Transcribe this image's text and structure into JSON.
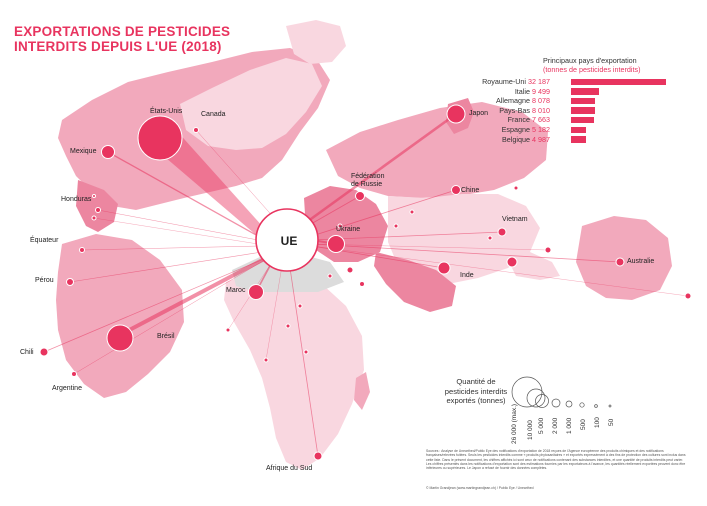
{
  "title_lines": [
    "Exportations de pesticides",
    "interdits depuis l'UE (2018)"
  ],
  "hub_label": "UE",
  "panel": {
    "title": "Principaux pays d'exportation",
    "subtitle": "(tonnes de pesticides interdits)"
  },
  "chart_data": {
    "type": "bar",
    "title": "Principaux pays d'exportation",
    "subtitle": "(tonnes de pesticides interdits)",
    "categories": [
      "Royaume-Uni",
      "Italie",
      "Allemagne",
      "Pays-Bas",
      "France",
      "Espagne",
      "Belgique"
    ],
    "values": [
      32187,
      9499,
      8078,
      8010,
      7663,
      5182,
      4987
    ],
    "value_labels": [
      "32 187",
      "9 499",
      "8 078",
      "8 010",
      "7 663",
      "5 182",
      "4 987"
    ]
  },
  "destinations": [
    {
      "name": "États-Unis",
      "tonnes": 26000
    },
    {
      "name": "Brésil",
      "tonnes": 10000
    },
    {
      "name": "Japon",
      "tonnes": 4000
    },
    {
      "name": "Ukraine",
      "tonnes": 3500
    },
    {
      "name": "Maroc",
      "tonnes": 2000
    },
    {
      "name": "Mexique",
      "tonnes": 1500
    },
    {
      "name": "Fédération de Russie",
      "tonnes": 500
    },
    {
      "name": "Chine",
      "tonnes": 500
    },
    {
      "name": "Australie",
      "tonnes": 400
    },
    {
      "name": "Inde",
      "tonnes": 400
    },
    {
      "name": "Afrique du Sud",
      "tonnes": 400
    },
    {
      "name": "Chili",
      "tonnes": 300
    },
    {
      "name": "Vietnam",
      "tonnes": 300
    },
    {
      "name": "Pérou",
      "tonnes": 200
    },
    {
      "name": "Canada",
      "tonnes": 100
    },
    {
      "name": "Argentine",
      "tonnes": 100
    },
    {
      "name": "Équateur",
      "tonnes": 100
    },
    {
      "name": "Honduras",
      "tonnes": 100
    }
  ],
  "country_labels": {
    "etats_unis": "États-Unis",
    "canada": "Canada",
    "mexique": "Mexique",
    "honduras": "Honduras",
    "equateur": "Équateur",
    "perou": "Pérou",
    "chili": "Chili",
    "argentine": "Argentine",
    "bresil": "Brésil",
    "maroc": "Maroc",
    "afrique_du_sud": "Afrique du Sud",
    "japon": "Japon",
    "russie_1": "Fédération",
    "russie_2": "de Russie",
    "chine": "Chine",
    "ukraine": "Ukraine",
    "vietnam": "Vietnam",
    "inde": "Inde",
    "australie": "Australie"
  },
  "legend": {
    "title_lines": [
      "Quantité de",
      "pesticides interdits",
      "exportés (tonnes)"
    ],
    "size_labels": [
      "26 000 (max.)",
      "10 000",
      "5 000",
      "2 000",
      "1 000",
      "500",
      "100",
      "50"
    ]
  },
  "sources": "Sources : Analyse de Unearthed/Public Eye des notifications d'exportation de 2018 reçues de l'Agence européenne des produits chimiques et des notifications françaises/relevées fuitées. Seuls les pesticides interdits comme « produits phytosanitaires » et exportés expressément à des fins de protection des cultures sont inclus dans cette liste. Dans le présent document, les chiffres affichés ici sont ceux de notifications contenant des substances interdites, et une quantité de produits interdits peut varier. Les chiffres présentés dans les notifications d'exportation sont des estimations fournies par les exportateurs à l'avance, les quantités réellement exportées peuvent donc être inférieures ou supérieures. Le Japon a refusé de fournir des données complètes.",
  "credit": "© Martin Grandjean (www.martingrandjean.ch) / Public Eye / Unearthed",
  "colors": {
    "accent": "#e8345f",
    "land_light": "#f9d7e0",
    "land_mid": "#f2a9bc",
    "land_dark": "#ec86a0",
    "land_grey": "#dcdcdc"
  }
}
